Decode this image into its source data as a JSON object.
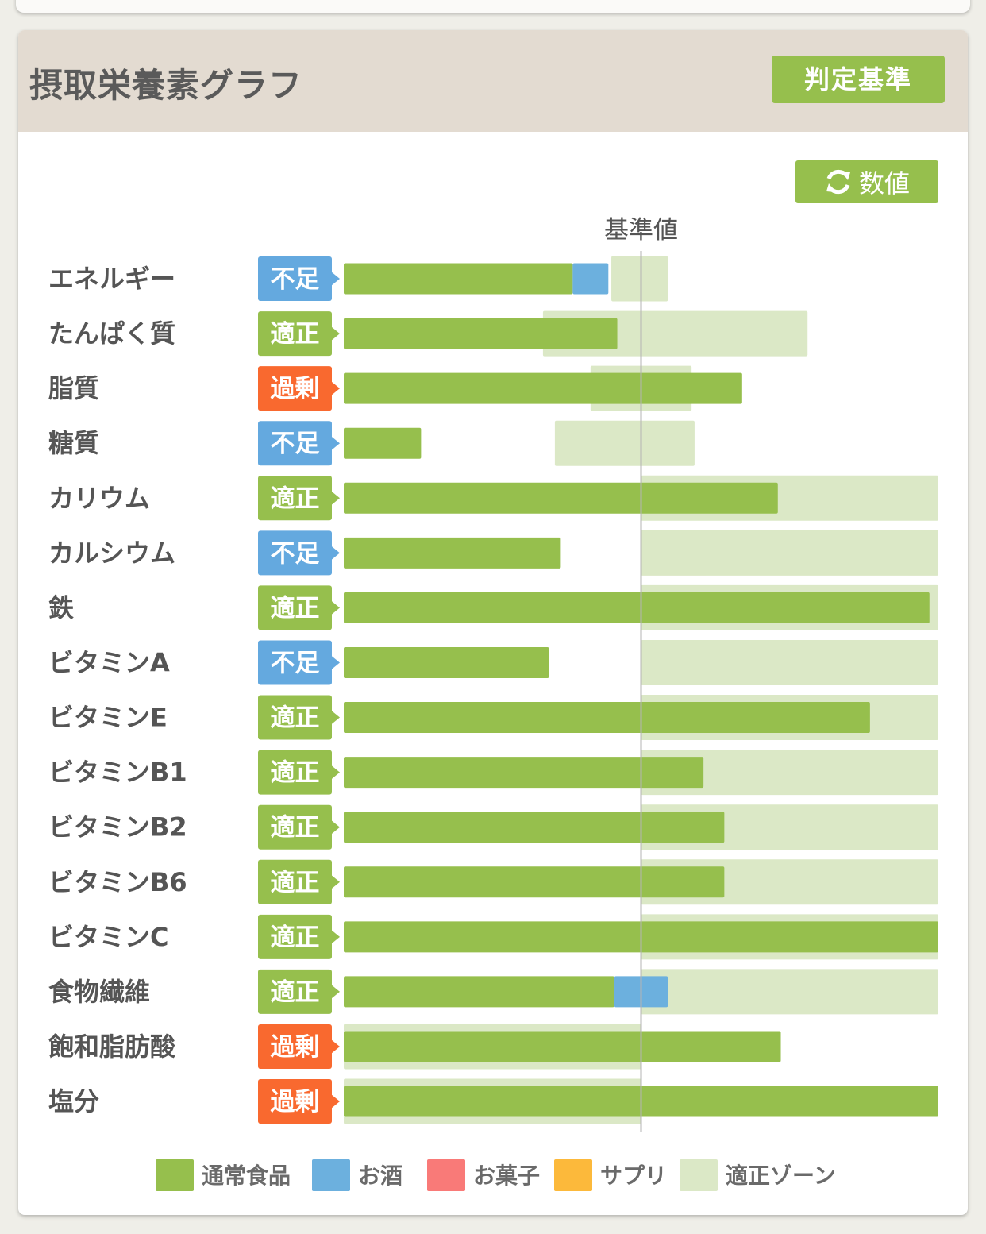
{
  "header": {
    "title": "摂取栄養素グラフ",
    "criteria_button": "判定基準"
  },
  "toggle": {
    "label": "数値",
    "icon": "refresh-icon"
  },
  "colors": {
    "normal_food": "#96bf4d",
    "alcohol": "#6cb0de",
    "snacks": "#f97a78",
    "supplement": "#fcb93b",
    "zone": "#dbe8c6",
    "status_insufficient": "#64a9df",
    "status_adequate": "#96bf4d",
    "status_excess": "#f9692f"
  },
  "chart_data": {
    "type": "bar",
    "orientation": "horizontal",
    "reference_label": "基準値",
    "reference_value": 100,
    "x_unit": "% of reference",
    "categories": [
      "エネルギー",
      "たんぱく質",
      "脂質",
      "糖質",
      "カリウム",
      "カルシウム",
      "鉄",
      "ビタミンA",
      "ビタミンE",
      "ビタミンB1",
      "ビタミンB2",
      "ビタミンB6",
      "ビタミンC",
      "食物繊維",
      "飽和脂肪酸",
      "塩分"
    ],
    "status": [
      "不足",
      "適正",
      "過剰",
      "不足",
      "適正",
      "不足",
      "適正",
      "不足",
      "適正",
      "適正",
      "適正",
      "適正",
      "適正",
      "適正",
      "過剰",
      "過剰"
    ],
    "series": [
      {
        "name": "通常食品",
        "values": [
          77,
          92,
          134,
          26,
          146,
          73,
          197,
          69,
          177,
          121,
          128,
          128,
          200,
          91,
          147,
          200
        ]
      },
      {
        "name": "お酒",
        "values": [
          12,
          0,
          0,
          0,
          0,
          0,
          0,
          0,
          0,
          0,
          0,
          0,
          0,
          18,
          0,
          0
        ]
      },
      {
        "name": "お菓子",
        "values": [
          0,
          0,
          0,
          0,
          0,
          0,
          0,
          0,
          0,
          0,
          0,
          0,
          0,
          0,
          0,
          0
        ]
      },
      {
        "name": "サプリ",
        "values": [
          0,
          0,
          0,
          0,
          0,
          0,
          0,
          0,
          0,
          0,
          0,
          0,
          0,
          0,
          0,
          0
        ]
      }
    ],
    "adequate_zone": [
      [
        90,
        109
      ],
      [
        67,
        156
      ],
      [
        83,
        117
      ],
      [
        71,
        118
      ],
      [
        100,
        200
      ],
      [
        100,
        200
      ],
      [
        100,
        200
      ],
      [
        100,
        200
      ],
      [
        100,
        200
      ],
      [
        100,
        200
      ],
      [
        100,
        200
      ],
      [
        100,
        200
      ],
      [
        100,
        200
      ],
      [
        100,
        200
      ],
      [
        0,
        100
      ],
      [
        0,
        100
      ]
    ],
    "legend": [
      "通常食品",
      "お酒",
      "お菓子",
      "サプリ",
      "適正ゾーン"
    ],
    "legend_position": "bottom"
  }
}
